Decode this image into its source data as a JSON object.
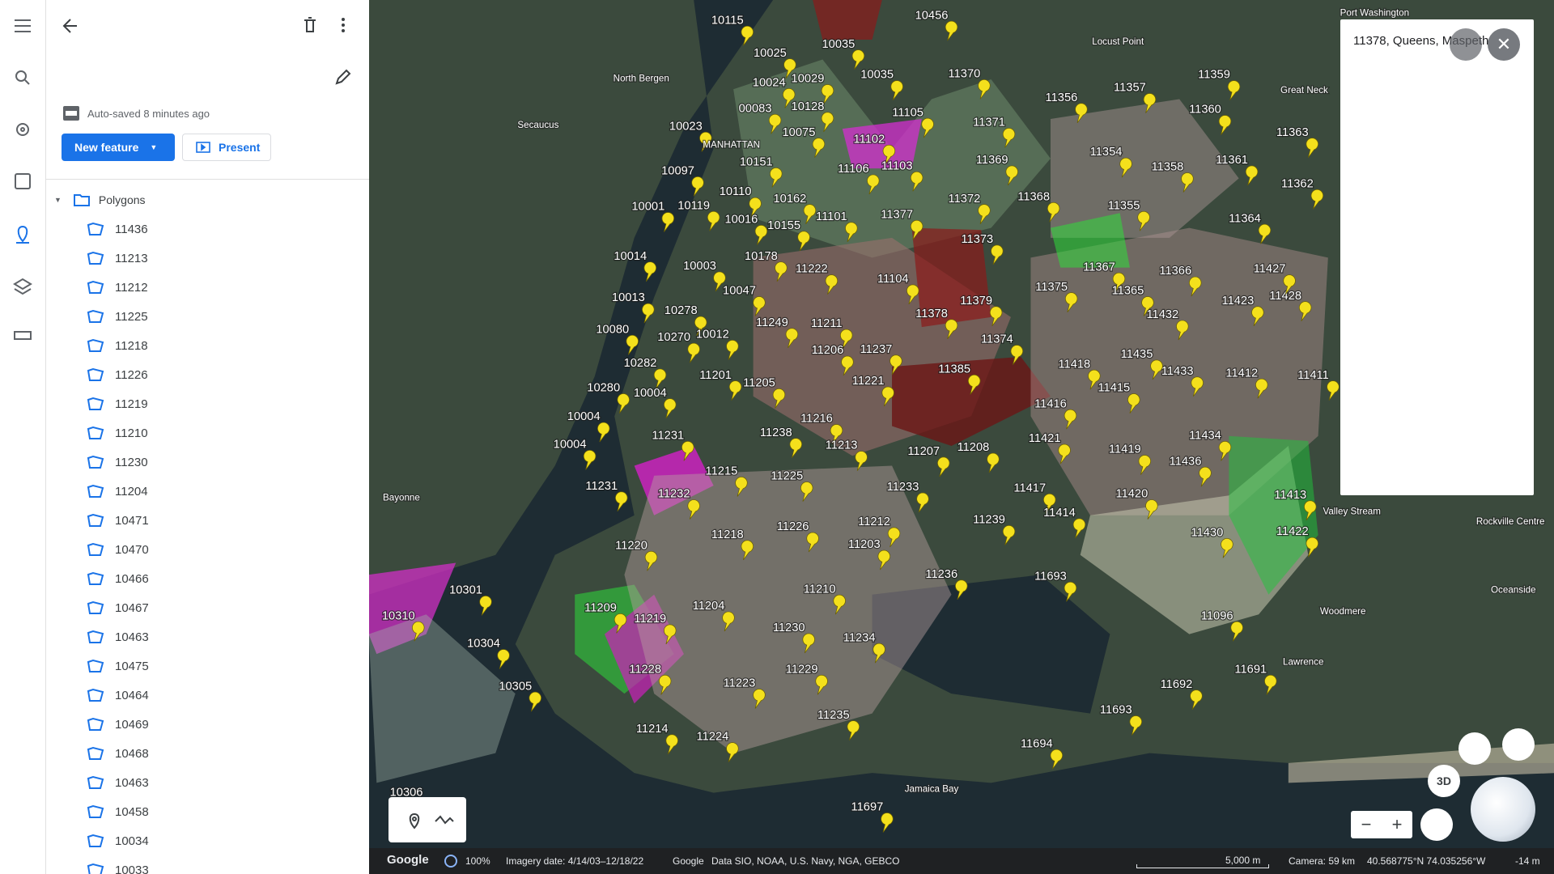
{
  "sidebar": {
    "autosave": "Auto-saved 8 minutes ago",
    "new_feature": "New feature",
    "present": "Present",
    "folder": "Polygons",
    "items": [
      "11436",
      "11213",
      "11212",
      "11225",
      "11218",
      "11226",
      "11219",
      "11210",
      "11230",
      "11204",
      "10471",
      "10470",
      "10466",
      "10467",
      "10463",
      "10475",
      "10464",
      "10469",
      "10468",
      "10463",
      "10458",
      "10034",
      "10033"
    ]
  },
  "map": {
    "labels": [
      "10115",
      "10456",
      "10035",
      "10025",
      "10024",
      "10029",
      "10035",
      "11370",
      "10023",
      "10128",
      "10075",
      "11102",
      "11105",
      "10151",
      "11106",
      "11103",
      "10162",
      "11101",
      "10155",
      "11377",
      "11372",
      "11373",
      "10178",
      "11222",
      "11104",
      "11379",
      "11378",
      "11375",
      "11367",
      "11366",
      "11365",
      "11249",
      "11211",
      "11206",
      "11237",
      "11374",
      "11385",
      "11221",
      "11205",
      "11201",
      "11216",
      "11238",
      "11213",
      "11207",
      "11208",
      "11215",
      "11225",
      "11233",
      "11226",
      "11212",
      "11218",
      "11203",
      "11236",
      "11210",
      "11204",
      "11209",
      "11219",
      "11230",
      "11234",
      "11228",
      "11229",
      "11223",
      "11235",
      "11214",
      "11224",
      "11697",
      "11694",
      "11693",
      "11096",
      "11430",
      "11422",
      "11413",
      "11420",
      "11434",
      "11436",
      "11412",
      "11411",
      "11433",
      "11435",
      "11432",
      "11423",
      "11428",
      "11427",
      "11364",
      "11358",
      "11361",
      "11362",
      "11363",
      "11357",
      "11359",
      "11360",
      "11356",
      "11354",
      "11355",
      "11368",
      "11369",
      "11371",
      "11418",
      "11415",
      "11416",
      "11421",
      "11419",
      "11417",
      "11414",
      "11239",
      "11692",
      "11691",
      "11693",
      "10001",
      "10119",
      "10110",
      "10016",
      "10014",
      "10003",
      "10047",
      "10013",
      "10278",
      "10080",
      "10270",
      "10012",
      "10282",
      "10280",
      "10004",
      "10004",
      "10004",
      "11231",
      "11231",
      "11232",
      "11220",
      "10310",
      "10301",
      "10304",
      "10305",
      "10306",
      "10097",
      "00083",
      "MANHATTAN",
      "North Bergen",
      "Secaucus",
      "Bayonne",
      "Locust Point",
      "Great Neck",
      "Valley Stream",
      "Rockville Centre",
      "Oceanside",
      "Woodmere",
      "Lawrence",
      "Jamaica Bay",
      "Port Washington"
    ],
    "info_card": {
      "title": "11378, Queens, Maspeth"
    },
    "controls": {
      "three_d": "3D"
    }
  },
  "status_bar": {
    "logo": "Google",
    "zoom": "100%",
    "imagery_date": "Imagery date: 4/14/03–12/18/22",
    "attribution_brand": "Google",
    "attribution": "Data SIO, NOAA, U.S. Navy, NGA, GEBCO",
    "scale": "5,000 m",
    "camera": "Camera: 59 km",
    "coordinates": "40.568775°N 74.035256°W",
    "elevation": "-14 m"
  }
}
